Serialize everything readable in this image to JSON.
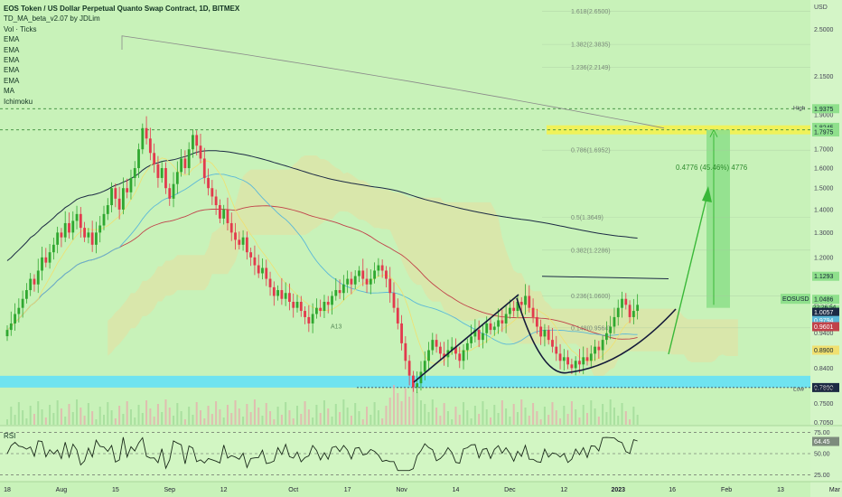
{
  "header": {
    "title": "EOS Token / US Dollar Perpetual Quanto Swap Contract, 1D, BITMEX",
    "indicators": [
      "TD_MA_beta_v2.07 by JDLim",
      "Vol · Ticks",
      "EMA",
      "EMA",
      "EMA",
      "EMA",
      "EMA",
      "MA",
      "Ichimoku"
    ]
  },
  "colors": {
    "background": "#c8f2b9",
    "candle_up": "#2fa830",
    "candle_down": "#e23a4d",
    "support_zone": "#6fe3f0",
    "target_zone": "#f0f25a",
    "target_box": "#8fe08c",
    "arrow": "#39b838",
    "fib_text": "#7a8a7a",
    "pattern_line": "#141a3a"
  },
  "chart_data": [
    {
      "type": "line",
      "name": "price",
      "title": "EOS Token / US Dollar Perpetual Quanto Swap Contract, 1D, BITMEX",
      "yscale": "log",
      "ylim": [
        0.7,
        2.75
      ],
      "y_axis_unit": "USD",
      "y_ticks": [
        0.705,
        0.75,
        0.84,
        0.94,
        1.04,
        1.13,
        1.2,
        1.3,
        1.4,
        1.5,
        1.6,
        1.7,
        1.8,
        1.9,
        2.15,
        2.5
      ],
      "y_tick_labels": [
        "0.7050",
        "0.7500",
        "0.8400",
        "0.9400",
        "1.0400",
        "1.1300",
        "1.2000",
        "1.3000",
        "1.4000",
        "1.5000",
        "1.6000",
        "1.7000",
        "1.8000",
        "1.9000",
        "2.1500",
        "2.5000"
      ],
      "x_ticks": [
        "18",
        "Aug",
        "15",
        "Sep",
        "12",
        "Oct",
        "17",
        "Nov",
        "14",
        "Dec",
        "12",
        "2023",
        "16",
        "Feb",
        "13",
        "Mar"
      ],
      "x_tick_index": [
        0,
        14,
        28,
        42,
        56,
        74,
        88,
        102,
        116,
        130,
        144,
        158,
        172,
        186,
        200,
        214
      ],
      "series": [
        {
          "close": [
            0.95,
            0.97,
            1.0,
            1.02,
            1.05,
            1.08,
            1.12,
            1.1,
            1.15,
            1.2,
            1.18,
            1.22,
            1.25,
            1.3,
            1.28,
            1.34,
            1.3,
            1.35,
            1.38,
            1.32,
            1.28,
            1.3,
            1.25,
            1.3,
            1.33,
            1.38,
            1.42,
            1.5,
            1.45,
            1.4,
            1.5,
            1.48,
            1.55,
            1.6,
            1.7,
            1.82,
            1.76,
            1.68,
            1.62,
            1.55,
            1.6,
            1.5,
            1.45,
            1.52,
            1.58,
            1.65,
            1.6,
            1.7,
            1.78,
            1.72,
            1.65,
            1.55,
            1.5,
            1.46,
            1.42,
            1.36,
            1.4,
            1.34,
            1.3,
            1.27,
            1.25,
            1.28,
            1.22,
            1.2,
            1.17,
            1.14,
            1.16,
            1.12,
            1.09,
            1.06,
            1.08,
            1.05,
            1.07,
            1.04,
            1.02,
            1.04,
            1.01,
            0.99,
            0.97,
            1.0,
            1.02,
            1.01,
            1.04,
            1.03,
            1.06,
            1.08,
            1.07,
            1.1,
            1.12,
            1.1,
            1.13,
            1.15,
            1.12,
            1.1,
            1.12,
            1.15,
            1.17,
            1.15,
            1.12,
            1.07,
            1.02,
            0.97,
            0.91,
            0.86,
            0.82,
            0.79,
            0.8,
            0.83,
            0.86,
            0.89,
            0.92,
            0.9,
            0.88,
            0.87,
            0.89,
            0.9,
            0.88,
            0.86,
            0.89,
            0.91,
            0.93,
            0.95,
            0.92,
            0.94,
            0.97,
            0.95,
            0.96,
            0.98,
            0.97,
            1.0,
            1.02,
            1.01,
            1.04,
            1.03,
            1.06,
            1.02,
            0.99,
            0.96,
            0.93,
            0.95,
            0.92,
            0.9,
            0.88,
            0.86,
            0.87,
            0.85,
            0.84,
            0.86,
            0.85,
            0.87,
            0.86,
            0.88,
            0.9,
            0.89,
            0.92,
            0.94,
            0.96,
            0.99,
            1.02,
            1.05,
            1.03,
            0.99,
            1.01,
            1.03
          ],
          "last_value": 1.0486,
          "name": "EOSUSD"
        }
      ],
      "fib_levels": [
        {
          "ratio": "0.148",
          "value": 0.9564,
          "label": "0.148(0.9564)"
        },
        {
          "ratio": "0.236",
          "value": 1.06,
          "label": "0.236(1.0600)"
        },
        {
          "ratio": "0.382",
          "value": 1.2286,
          "label": "0.382(1.2286)"
        },
        {
          "ratio": "0.5",
          "value": 1.3649,
          "label": "0.5(1.3649)"
        },
        {
          "ratio": "0.786",
          "value": 1.6952,
          "label": "0.786(1.6952)"
        },
        {
          "ratio": "1.236",
          "value": 2.2149,
          "label": "1.236(2.2149)"
        },
        {
          "ratio": "1.382",
          "value": 2.3835,
          "label": "1.382(2.3835)"
        },
        {
          "ratio": "1.618",
          "value": 2.65,
          "label": "1.618(2.6500)"
        }
      ],
      "price_labels": [
        {
          "label": "High",
          "value": 1.9442,
          "text": "1.9442"
        },
        {
          "value": 1.9375,
          "text": "1.9375"
        },
        {
          "value": 1.8245,
          "text": "1.8245"
        },
        {
          "value": 1.7975,
          "text": "1.7975"
        },
        {
          "value": 1.1293,
          "text": "1.1293"
        },
        {
          "value": 1.0486,
          "text": "1.0486"
        },
        {
          "value": 1.0132,
          "text": "1.0132"
        },
        {
          "value": 1.0057,
          "text": "1.0057"
        },
        {
          "value": 0.9794,
          "text": "0.9794"
        },
        {
          "value": 0.9601,
          "text": "0.9601"
        },
        {
          "value": 0.89,
          "text": "0.8900"
        },
        {
          "value": 0.789,
          "text": "0.7890"
        },
        {
          "label": "Low",
          "value": 0.7869,
          "text": "0.7869"
        }
      ],
      "countdown": "22:26:54",
      "target_text": "0.4776 (45.46%) 4776",
      "annotations": [
        "A13"
      ],
      "support_level": 0.789,
      "target_level": 1.81
    },
    {
      "type": "line",
      "name": "RSI",
      "title": "RSI",
      "ylim": [
        20,
        80
      ],
      "y_tick_labels": [
        "75.00",
        "64.45",
        "50.00",
        "25.00"
      ],
      "y_ticks": [
        75,
        64.45,
        50,
        25
      ],
      "last_value": 64.45
    }
  ]
}
